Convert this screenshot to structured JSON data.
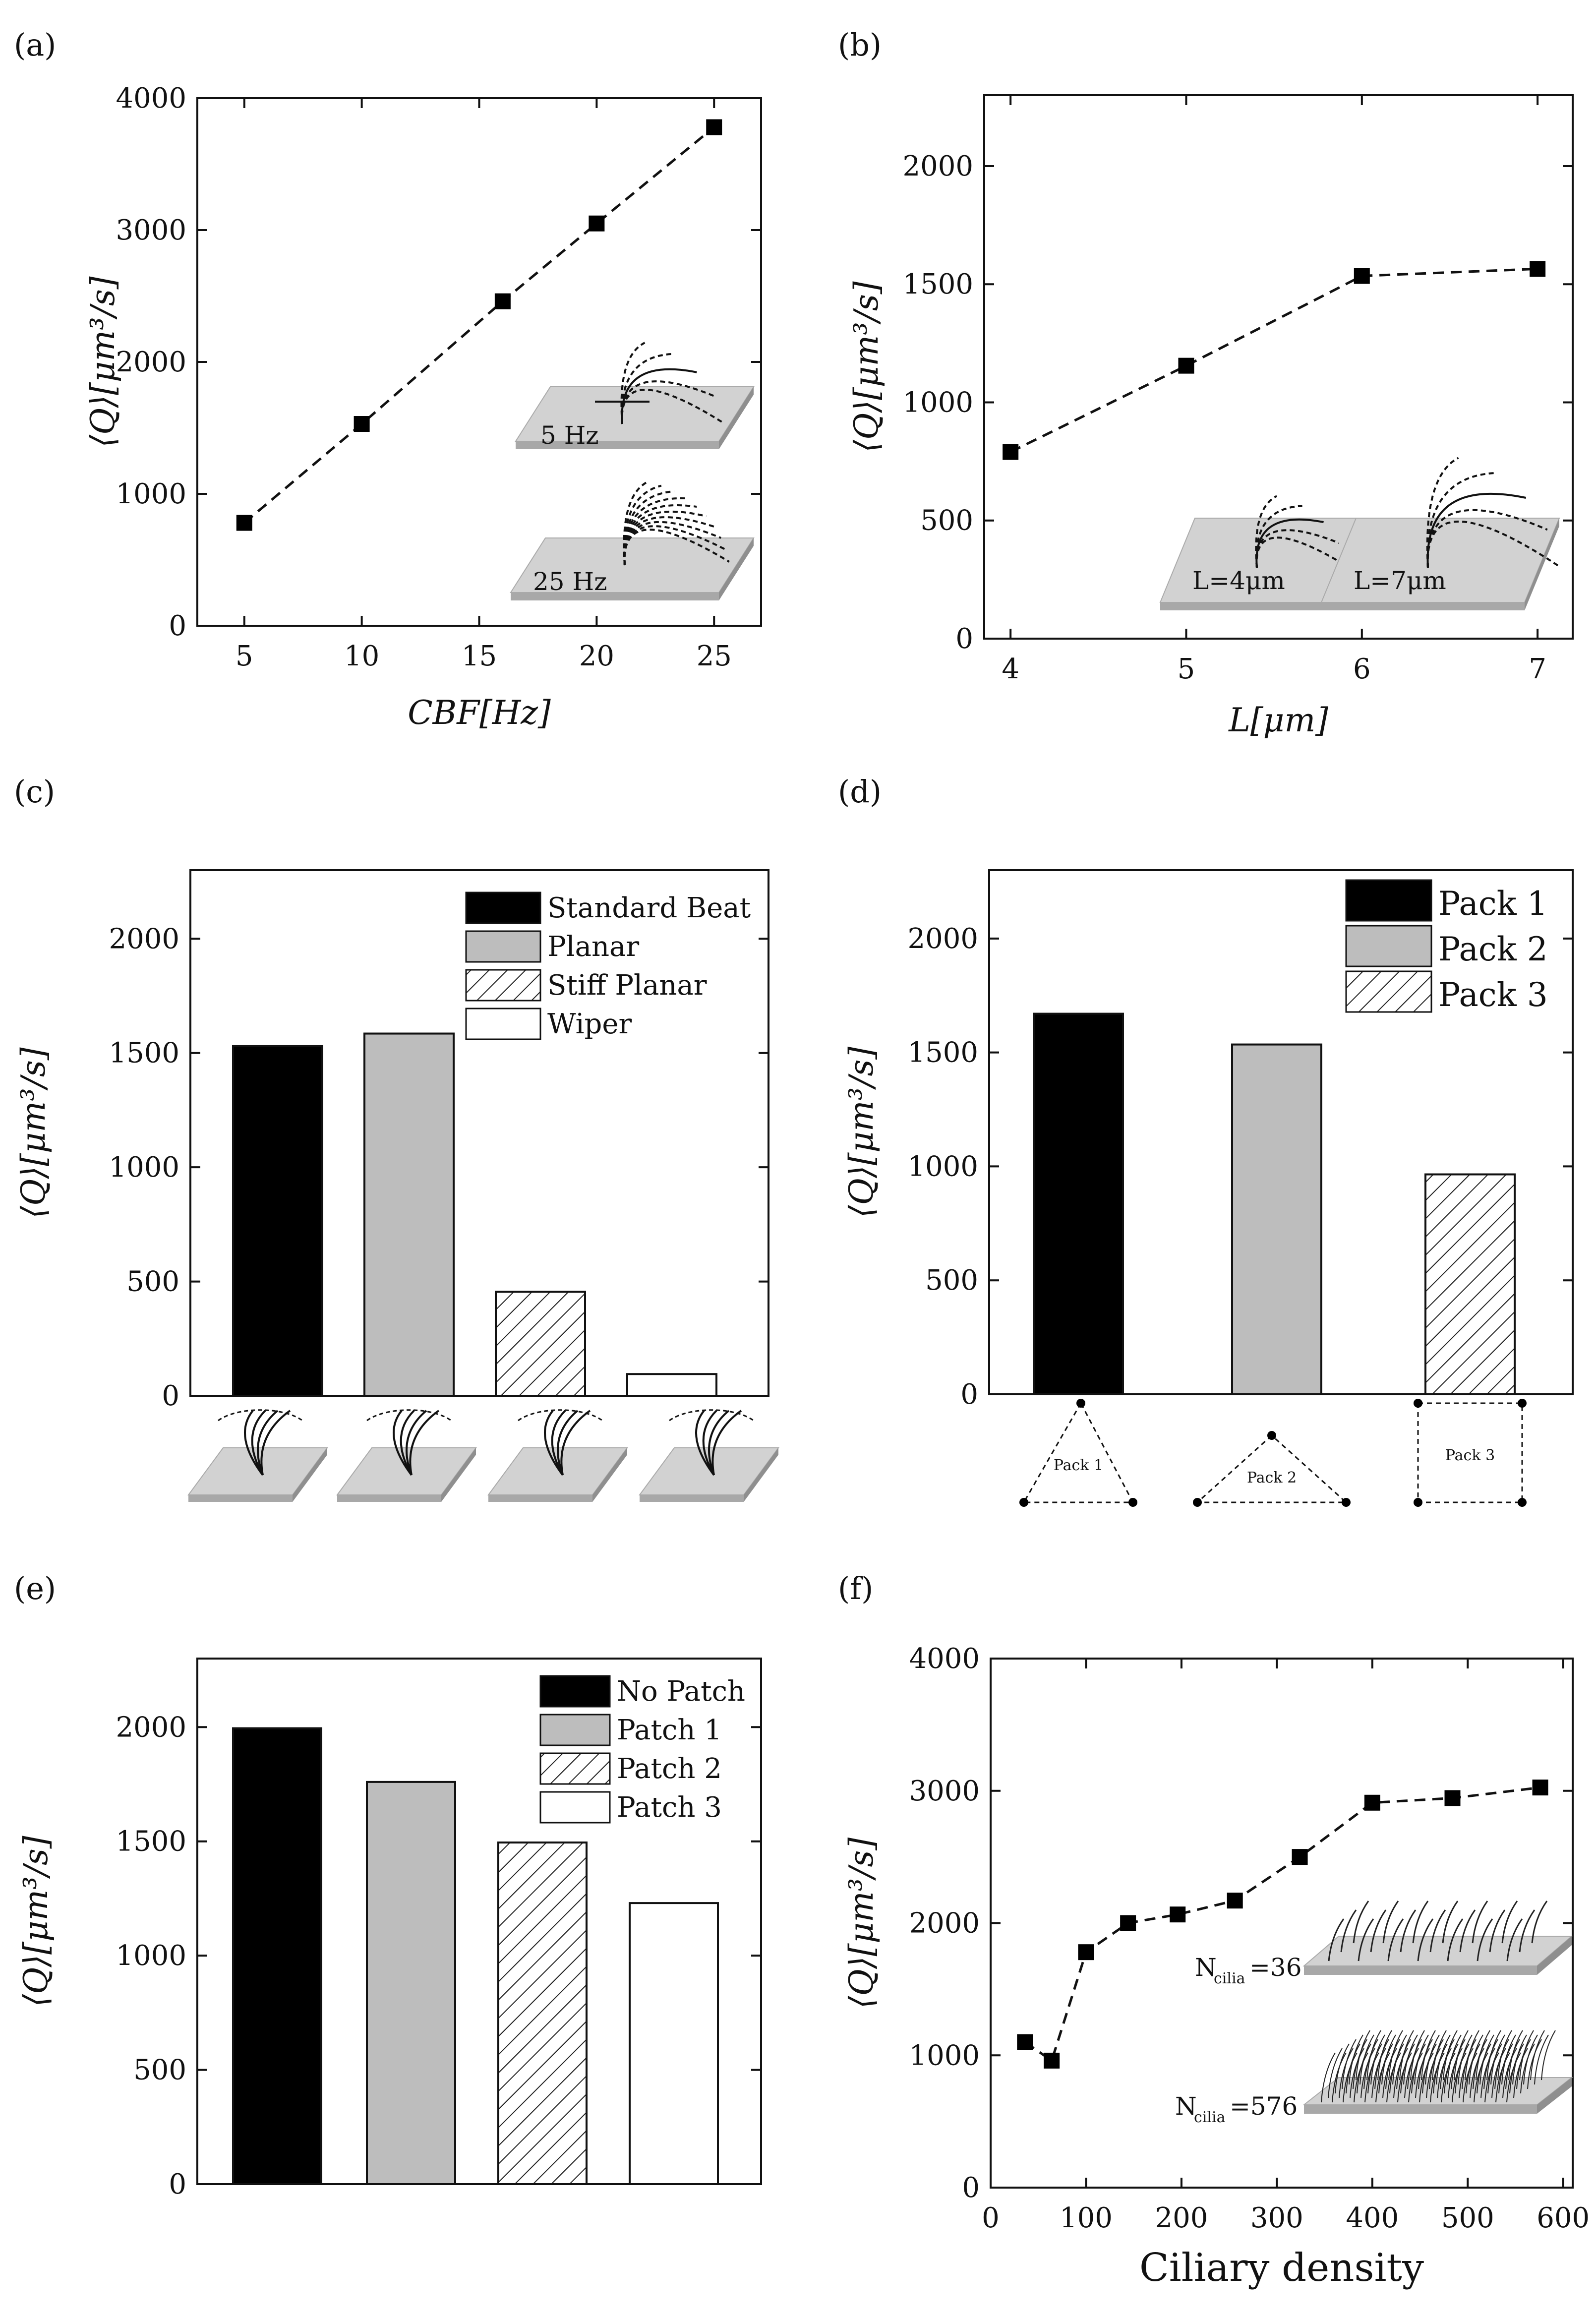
{
  "figure": {
    "panel_labels": [
      "(a)",
      "(b)",
      "(c)",
      "(d)",
      "(e)",
      "(f)"
    ]
  },
  "colors": {
    "black": "#000000",
    "gray": "#bdbdbd",
    "white": "#ffffff",
    "plate": "#d2d2d2"
  },
  "chart_data": [
    {
      "id": "a",
      "type": "scatter",
      "x": [
        5,
        10,
        16,
        20,
        25
      ],
      "y": [
        780,
        1530,
        2460,
        3050,
        3780
      ],
      "xlabel": "CBF[Hz]",
      "ylabel": "⟨Q⟩[μm³/s]",
      "xlim": [
        3,
        27
      ],
      "ylim": [
        0,
        4000
      ],
      "xticks": [
        5,
        10,
        15,
        20,
        25
      ],
      "yticks": [
        0,
        1000,
        2000,
        3000,
        4000
      ],
      "annotations": [
        "5 Hz",
        "25 Hz"
      ]
    },
    {
      "id": "b",
      "type": "scatter",
      "x": [
        4,
        5,
        6,
        7
      ],
      "y": [
        790,
        1155,
        1535,
        1565
      ],
      "xlabel": "L[μm]",
      "ylabel": "⟨Q⟩[μm³/s]",
      "xlim": [
        3.85,
        7.2
      ],
      "ylim": [
        0,
        2300
      ],
      "xticks": [
        4,
        5,
        6,
        7
      ],
      "yticks": [
        0,
        500,
        1000,
        1500,
        2000
      ],
      "annotations": [
        "L=4μm",
        "L=7μm"
      ]
    },
    {
      "id": "c",
      "type": "bar",
      "categories": [
        "Standard Beat",
        "Planar",
        "Stiff Planar",
        "Wiper"
      ],
      "values": [
        1530,
        1585,
        455,
        95
      ],
      "legend": [
        "Standard Beat",
        "Planar",
        "Stiff Planar",
        "Wiper"
      ],
      "fills": [
        "black",
        "gray",
        "hatch",
        "white"
      ],
      "ylabel": "⟨Q⟩[μm³/s]",
      "ylim": [
        0,
        2300
      ],
      "yticks": [
        0,
        500,
        1000,
        1500,
        2000
      ]
    },
    {
      "id": "d",
      "type": "bar",
      "categories": [
        "Pack 1",
        "Pack 2",
        "Pack 3"
      ],
      "values": [
        1670,
        1535,
        965
      ],
      "legend": [
        "Pack 1",
        "Pack 2",
        "Pack 3"
      ],
      "fills": [
        "black",
        "gray",
        "hatch"
      ],
      "ylabel": "⟨Q⟩[μm³/s]",
      "ylim": [
        0,
        2300
      ],
      "yticks": [
        0,
        500,
        1000,
        1500,
        2000
      ],
      "annotations": [
        "Pack 1",
        "Pack 2",
        "Pack 3"
      ]
    },
    {
      "id": "e",
      "type": "bar",
      "categories": [
        "No Patch",
        "Patch 1",
        "Patch 2",
        "Patch 3"
      ],
      "values": [
        1995,
        1760,
        1495,
        1230
      ],
      "legend": [
        "No Patch",
        "Patch 1",
        "Patch 2",
        "Patch 3"
      ],
      "fills": [
        "black",
        "gray",
        "hatch",
        "white"
      ],
      "ylabel": "⟨Q⟩[μm³/s]",
      "ylim": [
        0,
        2300
      ],
      "yticks": [
        0,
        500,
        1000,
        1500,
        2000
      ]
    },
    {
      "id": "f",
      "type": "scatter",
      "x": [
        36,
        64,
        100,
        144,
        196,
        256,
        324,
        400,
        484,
        576
      ],
      "y": [
        1100,
        960,
        1780,
        2000,
        2065,
        2170,
        2500,
        2910,
        2945,
        3025
      ],
      "xlabel": "Ciliary density",
      "ylabel": "⟨Q⟩[μm³/s]",
      "xlim": [
        0,
        610
      ],
      "ylim": [
        0,
        4000
      ],
      "xticks": [
        0,
        100,
        200,
        300,
        400,
        500,
        600
      ],
      "yticks": [
        0,
        1000,
        2000,
        3000,
        4000
      ],
      "annotations": [
        "N",
        "cilia",
        "=36",
        "N",
        "cilia",
        "=576"
      ]
    }
  ]
}
